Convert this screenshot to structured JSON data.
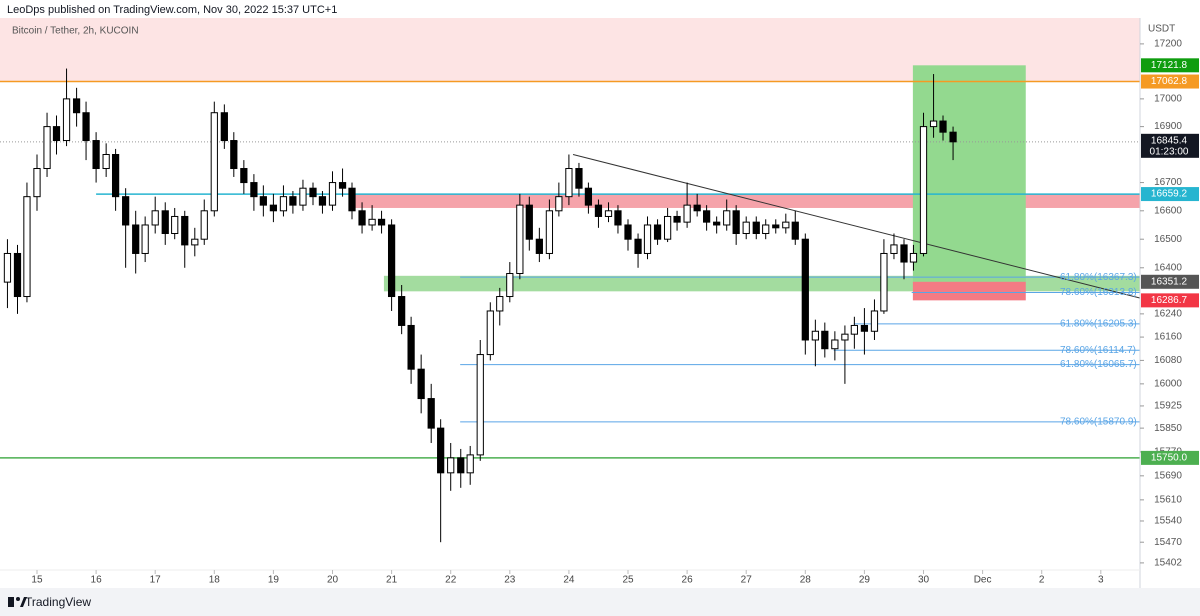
{
  "header": {
    "publisher": "LeoDps published on TradingView.com, Nov 30, 2022 15:37 UTC+1",
    "symbol": "Bitcoin / Tether, 2h, KUCOIN",
    "currency": "USDT",
    "footer": "TradingView"
  },
  "chart_data": {
    "type": "candlestick",
    "log": true,
    "up_color": "#ffffff",
    "down_color": "#000000",
    "wick_color": "#000000",
    "xlim": [
      14.374,
      33.663
    ],
    "xticks": [
      15,
      16,
      17,
      18,
      19,
      20,
      21,
      22,
      23,
      24,
      25,
      26,
      27,
      28,
      29,
      30,
      {
        "value": 31,
        "label": "Dec"
      },
      {
        "value": 32,
        "label": "2"
      },
      {
        "value": 33,
        "label": "3"
      }
    ],
    "ylim": [
      15320,
      17295
    ],
    "yticks": [
      17200,
      17000,
      16900,
      16700,
      16600,
      16500,
      16400,
      16240,
      16160,
      16080,
      16000,
      15925,
      15850,
      15770,
      15690,
      15610,
      15540,
      15470,
      15402
    ],
    "x": [
      14.5,
      14.67,
      14.83,
      15,
      15.17,
      15.33,
      15.5,
      15.67,
      15.83,
      16,
      16.17,
      16.33,
      16.5,
      16.67,
      16.83,
      17,
      17.17,
      17.33,
      17.5,
      17.67,
      17.83,
      18,
      18.17,
      18.33,
      18.5,
      18.67,
      18.83,
      19,
      19.17,
      19.33,
      19.5,
      19.67,
      19.83,
      20,
      20.17,
      20.33,
      20.5,
      20.67,
      20.83,
      21,
      21.17,
      21.33,
      21.5,
      21.67,
      21.83,
      22,
      22.17,
      22.33,
      22.5,
      22.67,
      22.83,
      23,
      23.17,
      23.33,
      23.5,
      23.67,
      23.83,
      24,
      24.17,
      24.33,
      24.5,
      24.67,
      24.83,
      25,
      25.17,
      25.33,
      25.5,
      25.67,
      25.83,
      26,
      26.17,
      26.33,
      26.5,
      26.67,
      26.83,
      27,
      27.17,
      27.33,
      27.5,
      27.67,
      27.83,
      28,
      28.17,
      28.33,
      28.5,
      28.67,
      28.83,
      29,
      29.17,
      29.33,
      29.5,
      29.67,
      29.83,
      30,
      30.17,
      30.33,
      30.5
    ],
    "ohlc": [
      [
        16350,
        16500,
        16260,
        16450
      ],
      [
        16450,
        16480,
        16240,
        16300
      ],
      [
        16300,
        16700,
        16280,
        16650
      ],
      [
        16650,
        16800,
        16600,
        16750
      ],
      [
        16750,
        16950,
        16720,
        16900
      ],
      [
        16900,
        16940,
        16800,
        16850
      ],
      [
        16850,
        17110,
        16830,
        17000
      ],
      [
        17000,
        17040,
        16900,
        16950
      ],
      [
        16950,
        16990,
        16780,
        16850
      ],
      [
        16850,
        16880,
        16700,
        16750
      ],
      [
        16750,
        16840,
        16720,
        16800
      ],
      [
        16800,
        16820,
        16600,
        16650
      ],
      [
        16650,
        16680,
        16400,
        16550
      ],
      [
        16550,
        16600,
        16380,
        16450
      ],
      [
        16450,
        16580,
        16420,
        16550
      ],
      [
        16550,
        16650,
        16520,
        16600
      ],
      [
        16600,
        16630,
        16480,
        16520
      ],
      [
        16520,
        16610,
        16500,
        16580
      ],
      [
        16580,
        16600,
        16400,
        16480
      ],
      [
        16480,
        16540,
        16440,
        16500
      ],
      [
        16500,
        16640,
        16480,
        16600
      ],
      [
        16600,
        16990,
        16580,
        16950
      ],
      [
        16950,
        16980,
        16820,
        16850
      ],
      [
        16850,
        16880,
        16720,
        16750
      ],
      [
        16750,
        16780,
        16660,
        16700
      ],
      [
        16700,
        16730,
        16600,
        16650
      ],
      [
        16650,
        16690,
        16580,
        16620
      ],
      [
        16620,
        16660,
        16560,
        16600
      ],
      [
        16600,
        16690,
        16580,
        16650
      ],
      [
        16650,
        16670,
        16590,
        16620
      ],
      [
        16620,
        16710,
        16600,
        16680
      ],
      [
        16680,
        16700,
        16620,
        16650
      ],
      [
        16650,
        16670,
        16590,
        16620
      ],
      [
        16620,
        16740,
        16600,
        16700
      ],
      [
        16700,
        16750,
        16650,
        16680
      ],
      [
        16680,
        16700,
        16570,
        16600
      ],
      [
        16600,
        16630,
        16520,
        16550
      ],
      [
        16550,
        16620,
        16530,
        16570
      ],
      [
        16570,
        16600,
        16520,
        16550
      ],
      [
        16550,
        16570,
        16250,
        16300
      ],
      [
        16300,
        16340,
        16170,
        16200
      ],
      [
        16200,
        16230,
        16000,
        16050
      ],
      [
        16050,
        16100,
        15900,
        15950
      ],
      [
        15950,
        16000,
        15800,
        15850
      ],
      [
        15850,
        15880,
        15470,
        15700
      ],
      [
        15700,
        15800,
        15640,
        15750
      ],
      [
        15750,
        15780,
        15650,
        15700
      ],
      [
        15700,
        15790,
        15660,
        15760
      ],
      [
        15760,
        16150,
        15740,
        16100
      ],
      [
        16100,
        16280,
        16080,
        16250
      ],
      [
        16250,
        16330,
        16200,
        16300
      ],
      [
        16300,
        16420,
        16280,
        16380
      ],
      [
        16380,
        16660,
        16360,
        16620
      ],
      [
        16620,
        16650,
        16460,
        16500
      ],
      [
        16500,
        16540,
        16420,
        16450
      ],
      [
        16450,
        16640,
        16430,
        16600
      ],
      [
        16600,
        16700,
        16580,
        16650
      ],
      [
        16650,
        16800,
        16620,
        16750
      ],
      [
        16750,
        16770,
        16650,
        16680
      ],
      [
        16680,
        16700,
        16590,
        16620
      ],
      [
        16620,
        16640,
        16540,
        16580
      ],
      [
        16580,
        16630,
        16560,
        16600
      ],
      [
        16600,
        16620,
        16520,
        16550
      ],
      [
        16550,
        16570,
        16460,
        16500
      ],
      [
        16500,
        16520,
        16400,
        16450
      ],
      [
        16450,
        16580,
        16430,
        16550
      ],
      [
        16550,
        16570,
        16480,
        16500
      ],
      [
        16500,
        16610,
        16490,
        16580
      ],
      [
        16580,
        16600,
        16530,
        16560
      ],
      [
        16560,
        16700,
        16540,
        16620
      ],
      [
        16620,
        16660,
        16580,
        16600
      ],
      [
        16600,
        16620,
        16530,
        16560
      ],
      [
        16560,
        16580,
        16520,
        16550
      ],
      [
        16550,
        16640,
        16530,
        16600
      ],
      [
        16600,
        16620,
        16480,
        16520
      ],
      [
        16520,
        16580,
        16500,
        16560
      ],
      [
        16560,
        16580,
        16500,
        16520
      ],
      [
        16520,
        16570,
        16500,
        16550
      ],
      [
        16550,
        16570,
        16520,
        16540
      ],
      [
        16540,
        16590,
        16520,
        16560
      ],
      [
        16560,
        16600,
        16480,
        16500
      ],
      [
        16500,
        16520,
        16100,
        16150
      ],
      [
        16150,
        16220,
        16060,
        16180
      ],
      [
        16180,
        16210,
        16090,
        16120
      ],
      [
        16120,
        16180,
        16080,
        16150
      ],
      [
        16150,
        16200,
        16000,
        16170
      ],
      [
        16170,
        16230,
        16120,
        16200
      ],
      [
        16200,
        16260,
        16100,
        16180
      ],
      [
        16180,
        16290,
        16150,
        16250
      ],
      [
        16250,
        16500,
        16240,
        16450
      ],
      [
        16450,
        16520,
        16430,
        16480
      ],
      [
        16480,
        16500,
        16360,
        16420
      ],
      [
        16420,
        16480,
        16390,
        16450
      ],
      [
        16450,
        16950,
        16440,
        16900
      ],
      [
        16900,
        17090,
        16860,
        16920
      ],
      [
        16920,
        16940,
        16850,
        16880
      ],
      [
        16880,
        16900,
        16780,
        16845.4
      ]
    ],
    "last_price": {
      "value": 16845.4,
      "countdown": "01:23:00",
      "color": "#131722"
    },
    "levels": [
      {
        "value": 17062.8,
        "color": "#f59a23"
      },
      {
        "value": 16659.2,
        "color": "#26b5d0",
        "start": 16
      },
      {
        "value": 15750,
        "label": "15750.0",
        "color": "#4caf50"
      }
    ],
    "zones": [
      {
        "low": 17062.8,
        "color": "#fde4e4"
      },
      {
        "low": 16610,
        "high": 16660,
        "start": 20.38,
        "color": "#f5a3aa"
      },
      {
        "low": 16318,
        "high": 16372,
        "start": 20.87,
        "color": "#a3dc9f"
      }
    ],
    "position": {
      "target": 17121.8,
      "entry": 16351.2,
      "stop": 16286.7,
      "start": 29.82,
      "end": 31.73,
      "target_color": "#0f9d0f",
      "entry_color": "#555555",
      "stop_color": "#f23645",
      "profit_fill": "#93d98f",
      "loss_fill": "#f47b84"
    },
    "trendline": {
      "x": [
        24.07,
        33.66
      ],
      "y": [
        16800,
        16295
      ],
      "color": "#333333"
    },
    "fibs": [
      {
        "label": "61.80%(16367.3)",
        "value": 16367.3,
        "start": 22.16
      },
      {
        "label": "78.60%(16313.8)",
        "value": 16313.8,
        "start": 29.8
      },
      {
        "label": "61.80%(16205.3)",
        "value": 16205.3,
        "start": 28.82
      },
      {
        "label": "78.60%(16114.7)",
        "value": 16114.7,
        "start": 28.48
      },
      {
        "label": "61.80%(16065.7)",
        "value": 16065.7,
        "start": 22.16
      },
      {
        "label": "78.60%(15870.9)",
        "value": 15870.9,
        "start": 22.16
      }
    ],
    "fib_color": "#5aa5e6"
  }
}
